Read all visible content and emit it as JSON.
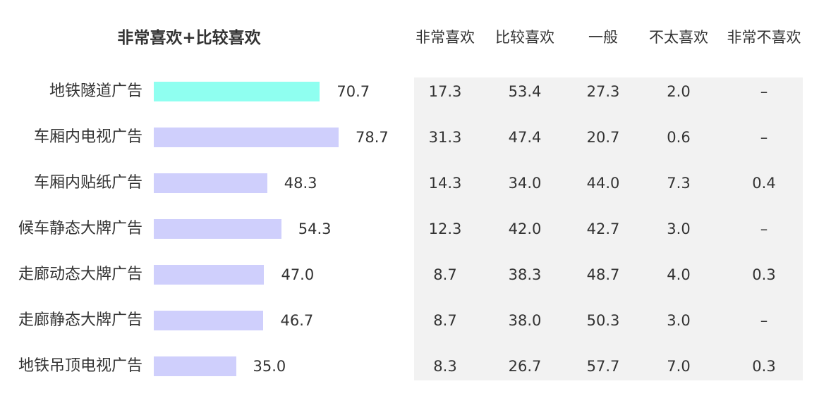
{
  "chart_data": [
    {
      "type": "bar",
      "orientation": "horizontal",
      "title": "非常喜欢+比较喜欢",
      "categories": [
        "地铁隧道广告",
        "车厢内电视广告",
        "车厢内贴纸广告",
        "候车静态大牌广告",
        "走廊动态大牌广告",
        "走廊静态大牌广告",
        "地铁吊顶电视广告"
      ],
      "values": [
        70.7,
        78.7,
        48.3,
        54.3,
        47.0,
        46.7,
        35.0
      ],
      "value_labels": [
        "70.7",
        "78.7",
        "48.3",
        "54.3",
        "47.0",
        "46.7",
        "35.0"
      ],
      "colors": [
        "#8ffff0",
        "#cfcffc",
        "#cfcffc",
        "#cfcffc",
        "#cfcffc",
        "#cfcffc",
        "#cfcffc"
      ],
      "xlim": [
        0,
        100
      ],
      "grid": false
    },
    {
      "type": "table",
      "columns": [
        "非常喜欢",
        "比较喜欢",
        "一般",
        "不太喜欢",
        "非常不喜欢"
      ],
      "rows": [
        [
          "17.3",
          "53.4",
          "27.3",
          "2.0",
          "–"
        ],
        [
          "31.3",
          "47.4",
          "20.7",
          "0.6",
          "–"
        ],
        [
          "14.3",
          "34.0",
          "44.0",
          "7.3",
          "0.4"
        ],
        [
          "12.3",
          "42.0",
          "42.7",
          "3.0",
          "–"
        ],
        [
          "8.7",
          "38.3",
          "48.7",
          "4.0",
          "0.3"
        ],
        [
          "8.7",
          "38.0",
          "50.3",
          "3.0",
          "–"
        ],
        [
          "8.3",
          "26.7",
          "57.7",
          "7.0",
          "0.3"
        ]
      ]
    }
  ]
}
